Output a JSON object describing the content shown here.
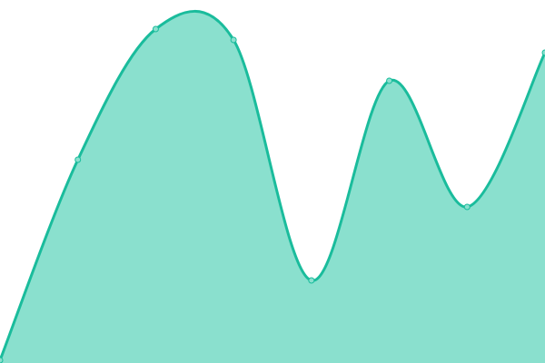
{
  "chart_data": {
    "type": "area",
    "x": [
      0,
      1,
      2,
      3,
      4,
      5,
      6,
      7
    ],
    "values": [
      3,
      224,
      368,
      356,
      91,
      311,
      172,
      342
    ],
    "ylim": [
      0,
      400
    ],
    "grid": false,
    "axes_visible": false,
    "markers": true,
    "smooth": true,
    "colors": {
      "line": "#1abc9c",
      "fill": "#8ae0ce",
      "marker_fill": "#8ae0ce"
    }
  }
}
